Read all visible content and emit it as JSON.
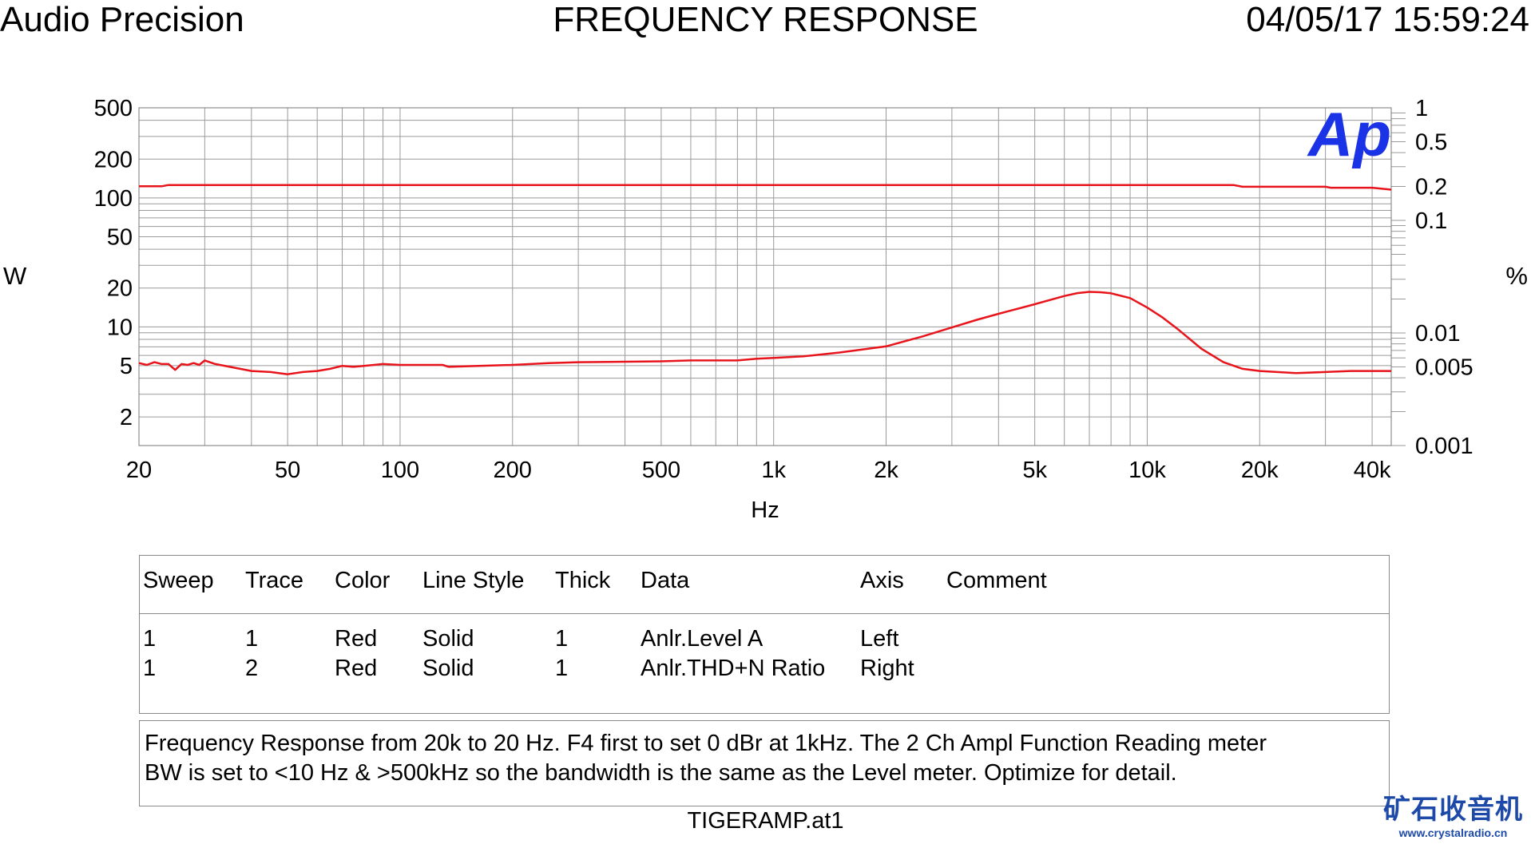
{
  "header": {
    "left": "Audio Precision",
    "center": "FREQUENCY RESPONSE",
    "right": "04/05/17 15:59:24"
  },
  "chart_data": {
    "type": "line",
    "title": "FREQUENCY RESPONSE",
    "xlabel": "Hz",
    "ylabel_left": "W",
    "ylabel_right": "%",
    "x_scale": "log",
    "xlim": [
      20,
      45000
    ],
    "ylim_left": [
      1.2,
      500
    ],
    "ylim_right": [
      0.001,
      1
    ],
    "y_scale_left": "log",
    "y_scale_right": "log",
    "grid": true,
    "x_ticks": [
      "20",
      "50",
      "100",
      "200",
      "500",
      "1k",
      "2k",
      "5k",
      "10k",
      "20k",
      "40k"
    ],
    "x_tick_values": [
      20,
      50,
      100,
      200,
      500,
      1000,
      2000,
      5000,
      10000,
      20000,
      40000
    ],
    "y_ticks_left": [
      "500",
      "200",
      "100",
      "50",
      "20",
      "10",
      "5",
      "2"
    ],
    "y_tick_values_left": [
      500,
      200,
      100,
      50,
      20,
      10,
      5,
      2
    ],
    "y_ticks_right": [
      "1",
      "0.5",
      "0.2",
      "0.1",
      "0.01",
      "0.005",
      "0.001"
    ],
    "y_tick_values_right": [
      1,
      0.5,
      0.2,
      0.1,
      0.01,
      0.005,
      0.001
    ],
    "series": [
      {
        "name": "Anlr.Level A",
        "axis": "left",
        "color": "#e8141b",
        "x": [
          20,
          23,
          24,
          500,
          1000,
          5000,
          10000,
          17000,
          18000,
          30000,
          31000,
          40000,
          45000
        ],
        "y": [
          123,
          123,
          126,
          126,
          126,
          126,
          126,
          126,
          122,
          122,
          120,
          120,
          116
        ]
      },
      {
        "name": "Anlr.THD+N Ratio",
        "axis": "right",
        "color": "#e8141b",
        "x": [
          20,
          21,
          22,
          23,
          24,
          25,
          26,
          27,
          28,
          29,
          30,
          32,
          35,
          40,
          45,
          50,
          55,
          60,
          65,
          70,
          75,
          80,
          90,
          100,
          130,
          135,
          200,
          250,
          300,
          500,
          600,
          800,
          900,
          1000,
          1200,
          1500,
          2000,
          2500,
          3000,
          3500,
          4000,
          5000,
          6000,
          6500,
          7000,
          7500,
          8000,
          9000,
          10000,
          11000,
          12000,
          14000,
          16000,
          18000,
          20000,
          25000,
          30000,
          35000,
          40000,
          45000
        ],
        "y": [
          0.0054,
          0.0052,
          0.0055,
          0.0053,
          0.0053,
          0.0047,
          0.0053,
          0.0052,
          0.0054,
          0.0052,
          0.0057,
          0.0053,
          0.005,
          0.0046,
          0.0045,
          0.0043,
          0.0045,
          0.0046,
          0.0048,
          0.0051,
          0.005,
          0.0051,
          0.0053,
          0.0052,
          0.0052,
          0.005,
          0.0052,
          0.0054,
          0.0055,
          0.0056,
          0.0057,
          0.0057,
          0.0059,
          0.006,
          0.0062,
          0.0067,
          0.0076,
          0.0093,
          0.0112,
          0.0131,
          0.0148,
          0.018,
          0.0213,
          0.0226,
          0.0232,
          0.023,
          0.0225,
          0.0204,
          0.0168,
          0.0137,
          0.011,
          0.0072,
          0.0055,
          0.0048,
          0.0046,
          0.0044,
          0.0045,
          0.0046,
          0.0046,
          0.0046
        ]
      }
    ]
  },
  "axis_units": {
    "left": "W",
    "right": "%",
    "x": "Hz"
  },
  "legend_table": {
    "headers": [
      "Sweep",
      "Trace",
      "Color",
      "Line Style",
      "Thick",
      "Data",
      "Axis",
      "Comment"
    ],
    "rows": [
      [
        "1",
        "1",
        "Red",
        "Solid",
        "1",
        "Anlr.Level A",
        "Left",
        ""
      ],
      [
        "1",
        "2",
        "Red",
        "Solid",
        "1",
        "Anlr.THD+N Ratio",
        "Right",
        ""
      ]
    ]
  },
  "comment": {
    "line1": "Frequency Response from 20k to 20 Hz.  F4 first to set 0 dBr at 1kHz.  The 2 Ch Ampl Function Reading meter",
    "line2": "BW is set to <10 Hz & >500kHz so the bandwidth is the same as the Level meter.  Optimize for detail."
  },
  "footer": "TIGERAMP.at1",
  "logo_text": "Ap",
  "watermark": {
    "cn": "矿石收音机",
    "url": "www.crystalradio.cn"
  },
  "colors": {
    "trace": "#e8141b",
    "grid": "#9a9a9a",
    "logo": "#1a33e6",
    "watermark": "#1d4aa8"
  }
}
